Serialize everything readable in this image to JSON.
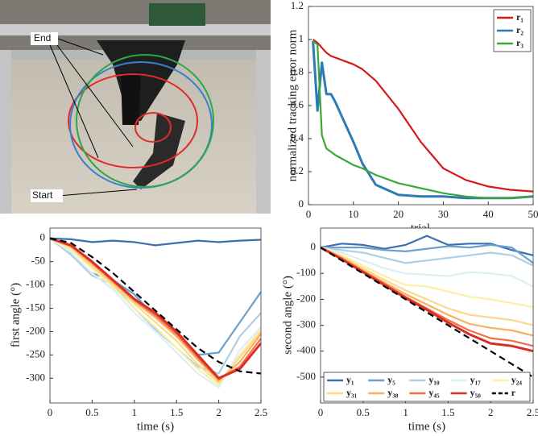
{
  "photo": {
    "end_label": "End",
    "start_label": "Start"
  },
  "chart_data": [
    {
      "type": "line",
      "ylabel": "normalized tracking error norm",
      "xlabel": "trial",
      "x": [
        1,
        2,
        3,
        4,
        5,
        6,
        8,
        10,
        12,
        15,
        20,
        25,
        30,
        35,
        40,
        45,
        50
      ],
      "xlim": [
        0,
        50
      ],
      "xticks": [
        0,
        10,
        20,
        30,
        40,
        50
      ],
      "ylim": [
        0,
        1.2
      ],
      "yticks": [
        0,
        0.2,
        0.4,
        0.6,
        0.8,
        1,
        1.2
      ],
      "legend": "upper right",
      "series": [
        {
          "name": "r₁",
          "color": "#d7191c",
          "values": [
            1,
            0.98,
            0.95,
            0.92,
            0.9,
            0.89,
            0.87,
            0.85,
            0.82,
            0.75,
            0.58,
            0.38,
            0.22,
            0.15,
            0.11,
            0.09,
            0.08
          ]
        },
        {
          "name": "r₂",
          "color": "#2c7bb6",
          "values": [
            0.99,
            0.57,
            0.86,
            0.67,
            0.67,
            0.62,
            0.5,
            0.38,
            0.25,
            0.12,
            0.06,
            0.05,
            0.05,
            0.04,
            0.04,
            0.04,
            0.05
          ]
        },
        {
          "name": "r₃",
          "color": "#3aa935",
          "values": [
            0.99,
            0.97,
            0.42,
            0.34,
            0.32,
            0.3,
            0.27,
            0.24,
            0.22,
            0.18,
            0.13,
            0.1,
            0.07,
            0.05,
            0.04,
            0.04,
            0.05
          ]
        }
      ]
    },
    {
      "type": "line",
      "ylabel": "first angle (°)",
      "xlabel": "time (s)",
      "x": [
        0,
        0.25,
        0.5,
        0.75,
        1,
        1.25,
        1.5,
        1.75,
        2,
        2.25,
        2.5
      ],
      "xlim": [
        0,
        2.5
      ],
      "xticks": [
        0,
        0.5,
        1,
        1.5,
        2,
        2.5
      ],
      "ylim": [
        -353,
        22
      ],
      "yticks": [
        0,
        -50,
        -100,
        -150,
        -200,
        -250,
        -300
      ],
      "series": [
        {
          "color": "#3b6fb0",
          "values": [
            0,
            -2,
            -8,
            -5,
            -8,
            -15,
            -10,
            -5,
            -8,
            -5,
            -3
          ]
        },
        {
          "color": "#6b9fcc",
          "values": [
            0,
            -35,
            -75,
            -90,
            -120,
            -170,
            -210,
            -250,
            -245,
            -180,
            -115
          ]
        },
        {
          "color": "#abd0e6",
          "values": [
            0,
            -35,
            -80,
            -100,
            -150,
            -195,
            -235,
            -275,
            -290,
            -210,
            -160
          ]
        },
        {
          "color": "#dceff6",
          "values": [
            0,
            -30,
            -75,
            -110,
            -160,
            -200,
            -245,
            -290,
            -320,
            -240,
            -190
          ]
        },
        {
          "color": "#fbf0a8",
          "values": [
            0,
            -25,
            -65,
            -105,
            -150,
            -190,
            -235,
            -280,
            -315,
            -250,
            -195
          ]
        },
        {
          "color": "#fed88a",
          "values": [
            0,
            -20,
            -60,
            -100,
            -140,
            -180,
            -220,
            -270,
            -310,
            -255,
            -200
          ]
        },
        {
          "color": "#fdae61",
          "values": [
            0,
            -18,
            -55,
            -95,
            -135,
            -170,
            -210,
            -260,
            -305,
            -265,
            -205
          ]
        },
        {
          "color": "#f46d43",
          "values": [
            0,
            -15,
            -52,
            -92,
            -132,
            -165,
            -205,
            -255,
            -302,
            -275,
            -215
          ]
        },
        {
          "color": "#d73027",
          "values": [
            0,
            -15,
            -50,
            -90,
            -130,
            -160,
            -200,
            -250,
            -300,
            -280,
            -225
          ]
        },
        {
          "color": "#000000",
          "dash": true,
          "values": [
            0,
            -10,
            -40,
            -75,
            -115,
            -155,
            -195,
            -235,
            -265,
            -285,
            -290
          ]
        }
      ]
    },
    {
      "type": "line",
      "ylabel": "second angle (°)",
      "xlabel": "time (s)",
      "x": [
        0,
        0.25,
        0.5,
        0.75,
        1,
        1.25,
        1.5,
        1.75,
        2,
        2.25,
        2.5
      ],
      "xlim": [
        0,
        2.5
      ],
      "xticks": [
        0,
        0.5,
        1,
        1.5,
        2,
        2.5
      ],
      "ylim": [
        -600,
        75
      ],
      "yticks": [
        0,
        -100,
        -200,
        -300,
        -400,
        -500
      ],
      "legend": "lower center",
      "legend_columns": 5,
      "series": [
        {
          "name": "y₁",
          "color": "#3b6fb0",
          "values": [
            0,
            15,
            10,
            -5,
            10,
            45,
            10,
            15,
            15,
            -10,
            -30
          ]
        },
        {
          "name": "y₅",
          "color": "#6b9fcc",
          "values": [
            0,
            0,
            0,
            -10,
            -15,
            -5,
            5,
            0,
            10,
            0,
            -60
          ]
        },
        {
          "name": "y₁₀",
          "color": "#abd0e6",
          "values": [
            0,
            -10,
            -20,
            -40,
            -60,
            -50,
            -40,
            -30,
            -20,
            -30,
            -70
          ]
        },
        {
          "name": "y₁₇",
          "color": "#dceff6",
          "values": [
            0,
            -20,
            -50,
            -80,
            -100,
            -105,
            -110,
            -95,
            -100,
            -110,
            -150
          ]
        },
        {
          "name": "y₂₄",
          "color": "#fbf0a8",
          "values": [
            0,
            -30,
            -70,
            -110,
            -145,
            -150,
            -170,
            -190,
            -200,
            -215,
            -230
          ]
        },
        {
          "name": "y₃₁",
          "color": "#fed88a",
          "values": [
            0,
            -35,
            -80,
            -125,
            -165,
            -200,
            -235,
            -260,
            -270,
            -280,
            -300
          ]
        },
        {
          "name": "y₃₈",
          "color": "#fdae61",
          "values": [
            0,
            -40,
            -88,
            -135,
            -180,
            -220,
            -260,
            -295,
            -310,
            -320,
            -340
          ]
        },
        {
          "name": "y₄₅",
          "color": "#f46d43",
          "values": [
            0,
            -42,
            -92,
            -140,
            -190,
            -235,
            -280,
            -320,
            -350,
            -360,
            -380
          ]
        },
        {
          "name": "y₅₀",
          "color": "#d73027",
          "values": [
            0,
            -45,
            -95,
            -145,
            -195,
            -240,
            -290,
            -335,
            -370,
            -380,
            -400
          ]
        },
        {
          "name": "r",
          "color": "#000000",
          "dash": true,
          "values": [
            0,
            -50,
            -100,
            -150,
            -200,
            -250,
            -300,
            -350,
            -400,
            -450,
            -500
          ]
        }
      ]
    }
  ]
}
